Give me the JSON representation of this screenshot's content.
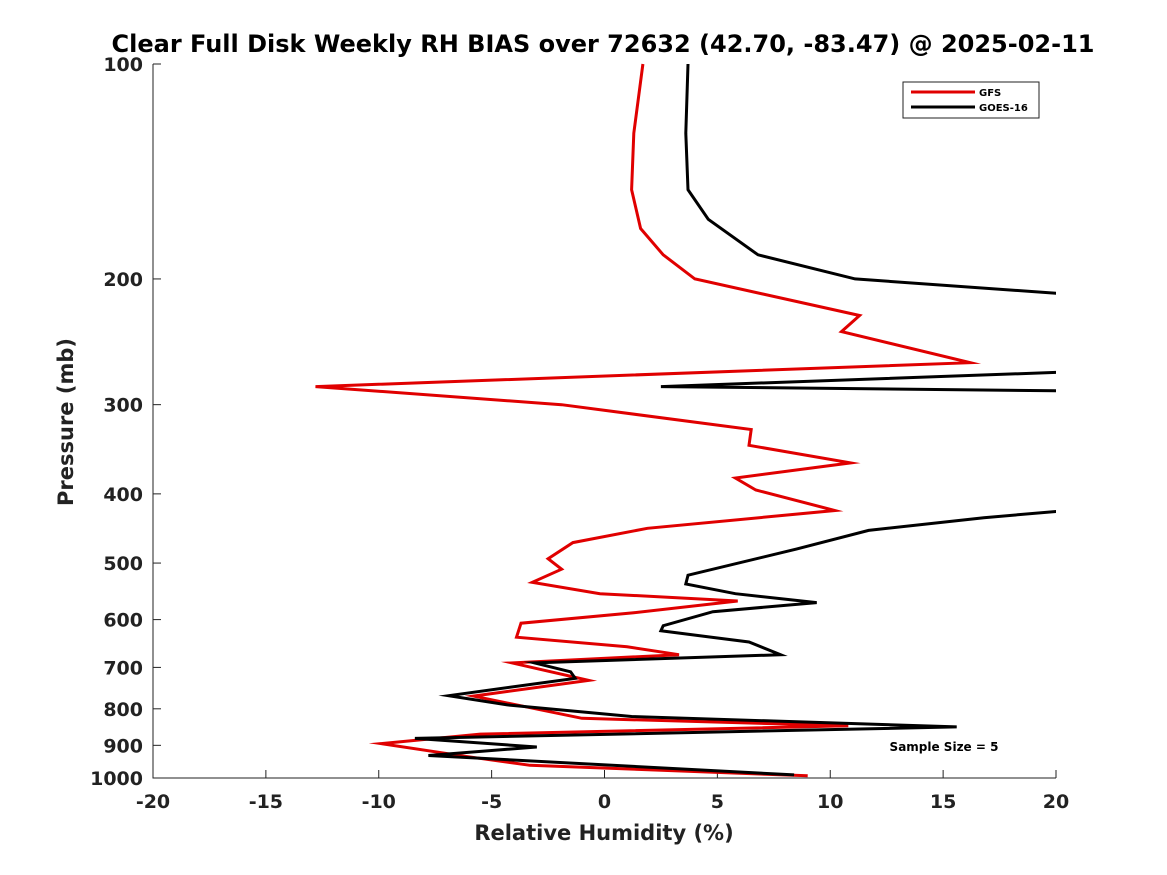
{
  "chart_data": {
    "type": "line",
    "title": "Clear Full Disk Weekly RH BIAS over 72632 (42.70, -83.47) @ 2025-02-11",
    "xlabel": "Relative Humidity (%)",
    "ylabel": "Pressure (mb)",
    "xlim": [
      -20,
      20
    ],
    "ylim": [
      100,
      1000
    ],
    "y_scale": "log",
    "y_reversed": true,
    "x_ticks": [
      "-20",
      "-15",
      "-10",
      "-5",
      "0",
      "5",
      "10",
      "15",
      "20"
    ],
    "y_ticks": [
      "100",
      "200",
      "300",
      "400",
      "500",
      "600",
      "700",
      "800",
      "900",
      "1000"
    ],
    "legend_position": "top-right",
    "annotation": "Sample Size = 5",
    "grid": false,
    "series": [
      {
        "name": "GFS",
        "color": "#e00000",
        "points": [
          [
            1.7,
            100
          ],
          [
            1.3,
            125
          ],
          [
            1.2,
            150
          ],
          [
            1.6,
            170
          ],
          [
            2.6,
            185
          ],
          [
            4.0,
            200
          ],
          [
            11.3,
            225
          ],
          [
            10.5,
            237
          ],
          [
            16.2,
            262
          ],
          [
            -12.8,
            283
          ],
          [
            -1.9,
            300
          ],
          [
            6.5,
            325
          ],
          [
            6.4,
            342
          ],
          [
            10.9,
            362
          ],
          [
            5.8,
            380
          ],
          [
            6.7,
            395
          ],
          [
            10.2,
            422
          ],
          [
            1.9,
            447
          ],
          [
            -1.4,
            468
          ],
          [
            -2.5,
            493
          ],
          [
            -1.9,
            510
          ],
          [
            -3.2,
            532
          ],
          [
            -0.2,
            552
          ],
          [
            5.9,
            565
          ],
          [
            1.3,
            587
          ],
          [
            -3.7,
            607
          ],
          [
            -3.9,
            635
          ],
          [
            1.0,
            655
          ],
          [
            3.3,
            672
          ],
          [
            -4.1,
            690
          ],
          [
            -0.7,
            730
          ],
          [
            -5.8,
            768
          ],
          [
            -1.0,
            825
          ],
          [
            10.8,
            845
          ],
          [
            -5.5,
            868
          ],
          [
            -9.9,
            895
          ],
          [
            -6.2,
            932
          ],
          [
            -3.3,
            960
          ],
          [
            9.0,
            993
          ]
        ]
      },
      {
        "name": "GOES-16",
        "color": "#000000",
        "points": [
          [
            3.7,
            100
          ],
          [
            3.6,
            125
          ],
          [
            3.7,
            150
          ],
          [
            4.6,
            165
          ],
          [
            6.8,
            185
          ],
          [
            11.1,
            200
          ],
          [
            20.5,
            210
          ],
          [
            20.5,
            270
          ],
          [
            2.5,
            283
          ],
          [
            20.5,
            287
          ],
          [
            20.5,
            422
          ],
          [
            16.8,
            432
          ],
          [
            11.7,
            450
          ],
          [
            8.5,
            478
          ],
          [
            3.7,
            520
          ],
          [
            3.6,
            535
          ],
          [
            5.8,
            552
          ],
          [
            9.4,
            568
          ],
          [
            4.8,
            585
          ],
          [
            2.6,
            612
          ],
          [
            2.5,
            622
          ],
          [
            6.4,
            645
          ],
          [
            7.8,
            672
          ],
          [
            -3.1,
            690
          ],
          [
            -1.5,
            710
          ],
          [
            -1.3,
            725
          ],
          [
            -6.9,
            767
          ],
          [
            -4.3,
            790
          ],
          [
            1.2,
            820
          ],
          [
            15.6,
            848
          ],
          [
            -8.4,
            880
          ],
          [
            -3.0,
            905
          ],
          [
            -7.8,
            930
          ],
          [
            8.4,
            990
          ]
        ]
      }
    ]
  }
}
